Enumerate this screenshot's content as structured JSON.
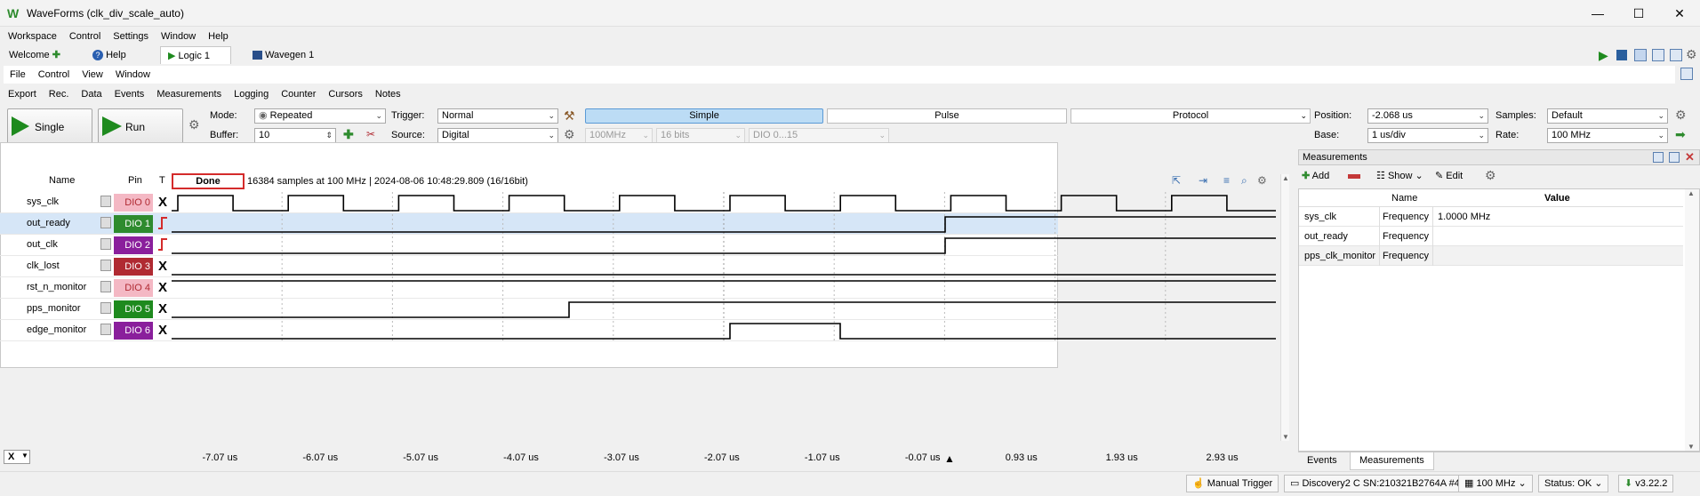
{
  "window": {
    "title": "WaveForms (clk_div_scale_auto)",
    "minimize": "—",
    "maximize": "☐",
    "close": "✕"
  },
  "main_menu": [
    "Workspace",
    "Control",
    "Settings",
    "Window",
    "Help"
  ],
  "doc_tabs": [
    {
      "label": "Welcome",
      "icon": "plus-icon"
    },
    {
      "label": "Help",
      "icon": "help-icon"
    },
    {
      "label": "Logic 1",
      "icon": "play-icon",
      "active": true
    },
    {
      "label": "Wavegen 1",
      "icon": "wavegen-icon"
    }
  ],
  "logic_menu": [
    "File",
    "Control",
    "View",
    "Window"
  ],
  "logic_submenu": [
    "Export",
    "Rec.",
    "Data",
    "Events",
    "Measurements",
    "Logging",
    "Counter",
    "Cursors",
    "Notes"
  ],
  "toolbar": {
    "single_label": "Single",
    "run_label": "Run",
    "mode_label": "Mode:",
    "mode_value": "Repeated",
    "buffer_label": "Buffer:",
    "buffer_value": "10",
    "trigger_label": "Trigger:",
    "trigger_value": "Normal",
    "source_label": "Source:",
    "source_value": "Digital",
    "rate_combo": "100MHz",
    "bits_combo": "16 bits",
    "dio_combo": "DIO 0...15",
    "simple_tab": "Simple",
    "pulse_tab": "Pulse",
    "protocol_tab": "Protocol",
    "position_label": "Position:",
    "position_value": "-2.068 us",
    "base_label": "Base:",
    "base_value": "1 us/div",
    "samples_label": "Samples:",
    "samples_value": "Default",
    "rate_label": "Rate:",
    "rate_value": "100 MHz"
  },
  "plot": {
    "name_header": "Name",
    "pin_header": "Pin",
    "t_header": "T",
    "status": "Done",
    "info": "16384 samples at 100 MHz | 2024-08-06 10:48:29.809 (16/16bit)",
    "x_label": "X",
    "ticks": [
      "-7.07 us",
      "-6.07 us",
      "-5.07 us",
      "-4.07 us",
      "-3.07 us",
      "-2.07 us",
      "-1.07 us",
      "-0.07 us",
      "0.93 us",
      "1.93 us",
      "2.93 us"
    ]
  },
  "channels": [
    {
      "name": "sys_clk",
      "pin": "DIO 0",
      "color": "#f4b8c4",
      "trig": "X"
    },
    {
      "name": "out_ready",
      "pin": "DIO 1",
      "color": "#2e8b2e",
      "trig": "rise"
    },
    {
      "name": "out_clk",
      "pin": "DIO 2",
      "color": "#8a1f9c",
      "trig": "rise"
    },
    {
      "name": "clk_lost",
      "pin": "DIO 3",
      "color": "#b02a32",
      "trig": "X"
    },
    {
      "name": "rst_n_monitor",
      "pin": "DIO 4",
      "color": "#f4b8c4",
      "trig": "X"
    },
    {
      "name": "pps_monitor",
      "pin": "DIO 5",
      "color": "#1e8a1e",
      "trig": "X"
    },
    {
      "name": "edge_monitor",
      "pin": "DIO 6",
      "color": "#8a1f9c",
      "trig": "X"
    }
  ],
  "measurements": {
    "panel_title": "Measurements",
    "add_label": "Add",
    "show_label": "Show",
    "edit_label": "Edit",
    "col_name": "Name",
    "col_value": "Value",
    "rows": [
      {
        "channel": "sys_clk",
        "name": "Frequency",
        "value": "1.0000 MHz"
      },
      {
        "channel": "out_ready",
        "name": "Frequency",
        "value": ""
      },
      {
        "channel": "pps_clk_monitor",
        "name": "Frequency",
        "value": ""
      }
    ],
    "tab_events": "Events",
    "tab_measurements": "Measurements"
  },
  "statusbar": {
    "manual_trigger": "Manual Trigger",
    "device": "Discovery2 C SN:210321B2764A #4",
    "freq": "100 MHz",
    "status": "Status: OK",
    "version": "v3.22.2"
  }
}
